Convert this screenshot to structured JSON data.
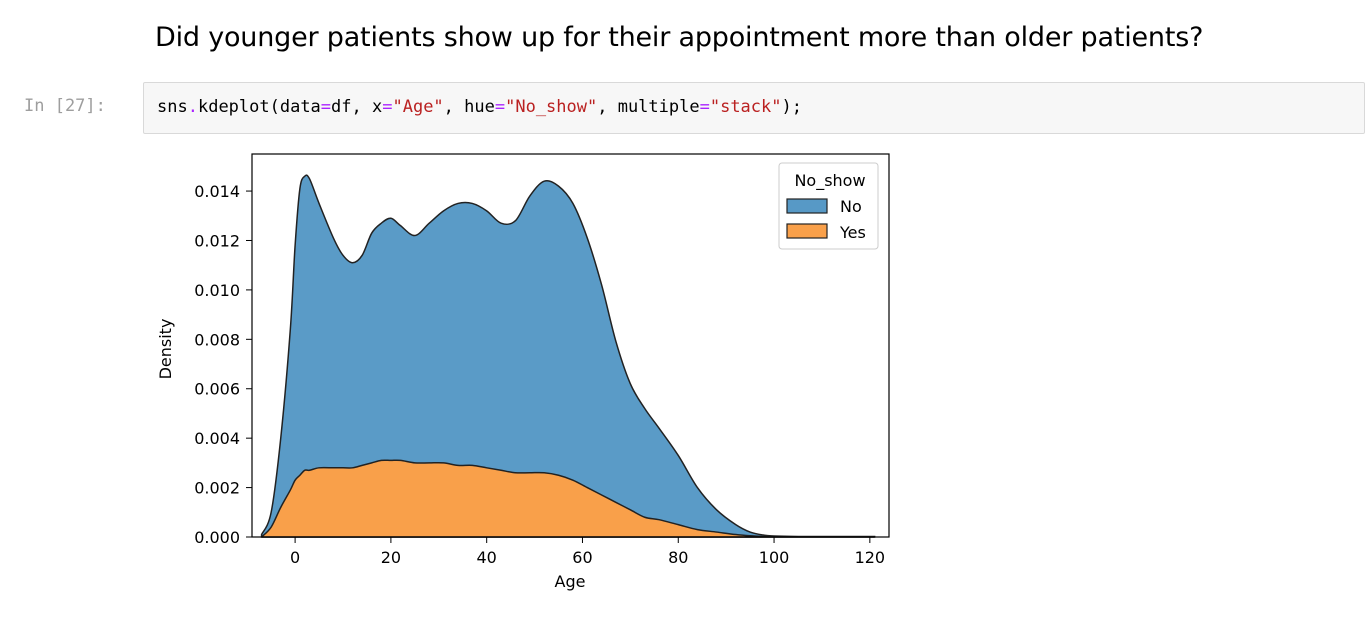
{
  "markdown": {
    "heading": "Did younger patients show up for their appointment more than older patients?"
  },
  "code_cell": {
    "prompt": "In [27]:",
    "tokens": [
      {
        "text": "sns",
        "type": "plain"
      },
      {
        "text": ".",
        "type": "op"
      },
      {
        "text": "kdeplot(data",
        "type": "plain"
      },
      {
        "text": "=",
        "type": "op"
      },
      {
        "text": "df, x",
        "type": "plain"
      },
      {
        "text": "=",
        "type": "op"
      },
      {
        "text": "\"Age\"",
        "type": "str"
      },
      {
        "text": ", hue",
        "type": "plain"
      },
      {
        "text": "=",
        "type": "op"
      },
      {
        "text": "\"No_show\"",
        "type": "str"
      },
      {
        "text": ", multiple",
        "type": "plain"
      },
      {
        "text": "=",
        "type": "op"
      },
      {
        "text": "\"stack\"",
        "type": "str"
      },
      {
        "text": ");",
        "type": "plain"
      }
    ]
  },
  "chart_data": {
    "type": "area",
    "stacked": true,
    "title": "",
    "xlabel": "Age",
    "ylabel": "Density",
    "xlim": [
      -9,
      124
    ],
    "ylim": [
      0,
      0.0155
    ],
    "xticks": [
      0,
      20,
      40,
      60,
      80,
      100,
      120
    ],
    "xtick_labels": [
      "0",
      "20",
      "40",
      "60",
      "80",
      "100",
      "120"
    ],
    "yticks": [
      0,
      0.002,
      0.004,
      0.006,
      0.008,
      0.01,
      0.012,
      0.014
    ],
    "ytick_labels": [
      "0.000",
      "0.002",
      "0.004",
      "0.006",
      "0.008",
      "0.010",
      "0.012",
      "0.014"
    ],
    "grid": false,
    "legend": {
      "title": "No_show",
      "position": "top-right"
    },
    "x": [
      -7,
      -5,
      -3,
      -1,
      0,
      1,
      2,
      3,
      5,
      8,
      10,
      12,
      14,
      16,
      18,
      20,
      22,
      25,
      28,
      31,
      34,
      37,
      40,
      43,
      46,
      49,
      52,
      55,
      58,
      61,
      64,
      67,
      70,
      73,
      76,
      80,
      84,
      88,
      92,
      95,
      98,
      100,
      105,
      110,
      115,
      121
    ],
    "series": [
      {
        "name": "Yes",
        "color": "#f9a04a",
        "values": [
          0.0,
          0.0004,
          0.0012,
          0.0019,
          0.0023,
          0.0025,
          0.0027,
          0.0027,
          0.0028,
          0.0028,
          0.0028,
          0.0028,
          0.0029,
          0.003,
          0.0031,
          0.0031,
          0.0031,
          0.003,
          0.003,
          0.003,
          0.0029,
          0.0029,
          0.0028,
          0.0027,
          0.0026,
          0.0026,
          0.0026,
          0.0025,
          0.0023,
          0.002,
          0.0017,
          0.0014,
          0.0011,
          0.0008,
          0.0007,
          0.0005,
          0.0003,
          0.0002,
          0.0001,
          5e-05,
          2e-05,
          1e-05,
          0.0,
          0.0,
          0.0,
          0.0
        ]
      },
      {
        "name": "No",
        "color": "#5799c6",
        "values": [
          0.0001,
          0.0006,
          0.0028,
          0.0065,
          0.0095,
          0.0116,
          0.0119,
          0.0118,
          0.0107,
          0.0093,
          0.0086,
          0.0083,
          0.0085,
          0.0093,
          0.0096,
          0.0098,
          0.0095,
          0.0092,
          0.0097,
          0.0102,
          0.0106,
          0.0106,
          0.0104,
          0.01,
          0.0102,
          0.0112,
          0.0118,
          0.0117,
          0.0112,
          0.0101,
          0.0085,
          0.0065,
          0.0051,
          0.0044,
          0.0037,
          0.0028,
          0.0017,
          0.0009,
          0.0004,
          0.00015,
          5e-05,
          3e-05,
          2e-05,
          2e-05,
          2e-05,
          2e-05
        ]
      }
    ],
    "colors": {
      "No": "#5799c6",
      "Yes": "#f9a04a",
      "outline": "#222222"
    }
  }
}
